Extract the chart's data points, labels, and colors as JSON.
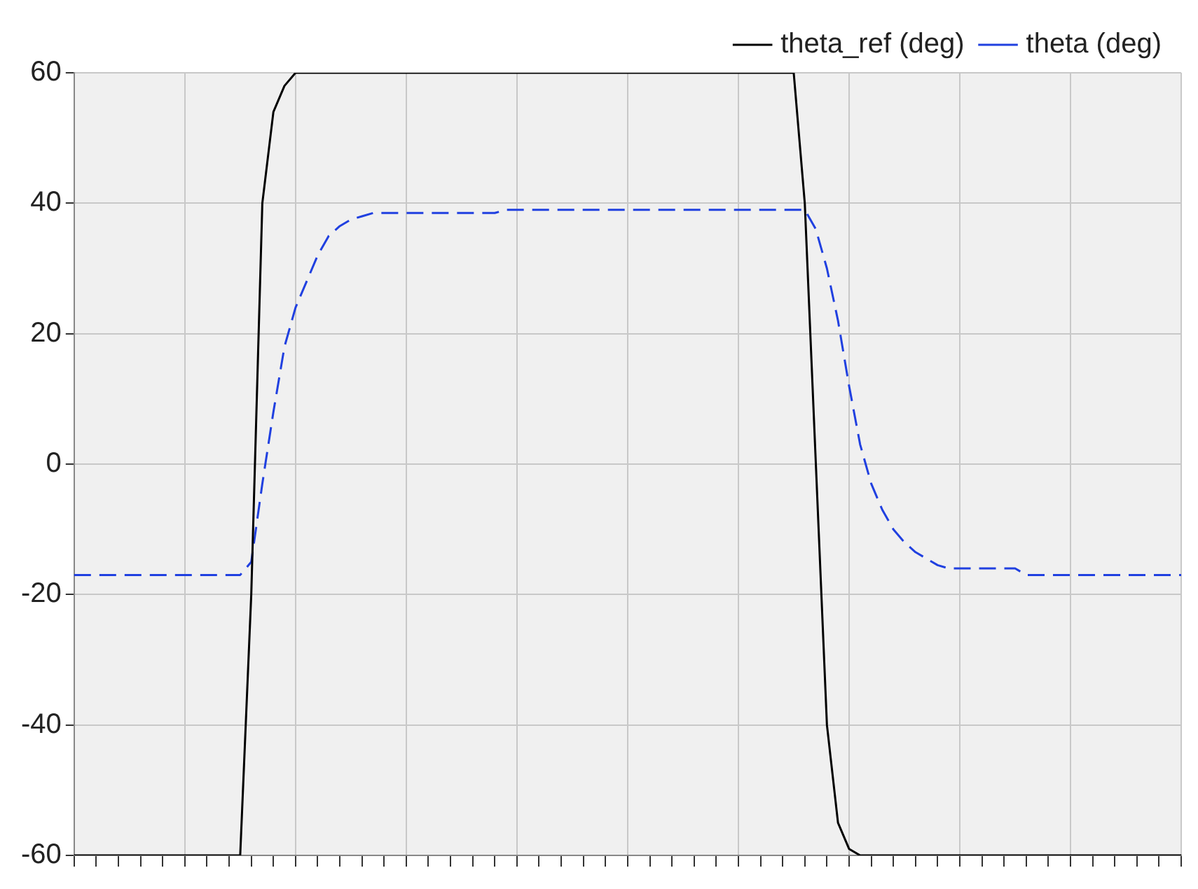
{
  "chart_data": {
    "type": "line",
    "categories": [
      null,
      null,
      null,
      null,
      null,
      null,
      null,
      null,
      null,
      null,
      null,
      null,
      null,
      null,
      null,
      null,
      null,
      null,
      null,
      null,
      null,
      null,
      null,
      null,
      null,
      null,
      null,
      null,
      null,
      null,
      null,
      null,
      null,
      null,
      null,
      null,
      null,
      null,
      null,
      null,
      null,
      null,
      null,
      null,
      null,
      null,
      null,
      null,
      null,
      null,
      null,
      null,
      null,
      null,
      null,
      null,
      null,
      null,
      null,
      null,
      null,
      null,
      null,
      null,
      null,
      null,
      null,
      null,
      null,
      null,
      null,
      null,
      null,
      null,
      null,
      null,
      null,
      null,
      null,
      null,
      null,
      null,
      null,
      null,
      null,
      null,
      null,
      null,
      null,
      null,
      null,
      null,
      null,
      null,
      null,
      null,
      null,
      null,
      null,
      null,
      null
    ],
    "series": [
      {
        "name": "theta_ref (deg)",
        "color": "#000000",
        "line_style": "solid",
        "values": [
          -60,
          -60,
          -60,
          -60,
          -60,
          -60,
          -60,
          -60,
          -60,
          -60,
          -60,
          -60,
          -60,
          -60,
          -60,
          -60,
          -20,
          40,
          54,
          58,
          60,
          60,
          60,
          60,
          60,
          60,
          60,
          60,
          60,
          60,
          60,
          60,
          60,
          60,
          60,
          60,
          60,
          60,
          60,
          60,
          60,
          60,
          60,
          60,
          60,
          60,
          60,
          60,
          60,
          60,
          60,
          60,
          60,
          60,
          60,
          60,
          60,
          60,
          60,
          60,
          60,
          60,
          60,
          60,
          60,
          60,
          40,
          0,
          -40,
          -55,
          -59,
          -60,
          -60,
          -60,
          -60,
          -60,
          -60,
          -60,
          -60,
          -60,
          -60,
          -60,
          -60,
          -60,
          -60,
          -60,
          -60,
          -60,
          -60,
          -60,
          -60,
          -60,
          -60,
          -60,
          -60,
          -60,
          -60,
          -60,
          -60,
          -60,
          -60
        ]
      },
      {
        "name": "theta (deg)",
        "color": "#2040e0",
        "line_style": "dashed",
        "values": [
          -17,
          -17,
          -17,
          -17,
          -17,
          -17,
          -17,
          -17,
          -17,
          -17,
          -17,
          -17,
          -17,
          -17,
          -17,
          -17,
          -15,
          -3,
          8,
          18,
          24,
          28,
          32,
          35,
          36.5,
          37.5,
          38,
          38.5,
          38.5,
          38.5,
          38.5,
          38.5,
          38.5,
          38.5,
          38.5,
          38.5,
          38.5,
          38.5,
          38.5,
          39,
          39,
          39,
          39,
          39,
          39,
          39,
          39,
          39,
          39,
          39,
          39,
          39,
          39,
          39,
          39,
          39,
          39,
          39,
          39,
          39,
          39,
          39,
          39,
          39,
          39,
          39,
          39,
          36,
          30,
          22,
          12,
          3,
          -3,
          -7,
          -10,
          -12,
          -13.5,
          -14.5,
          -15.5,
          -16,
          -16,
          -16,
          -16,
          -16,
          -16,
          -16,
          -17,
          -17,
          -17,
          -17,
          -17,
          -17,
          -17,
          -17,
          -17,
          -17,
          -17,
          -17,
          -17,
          -17,
          -17
        ]
      }
    ],
    "ylim": [
      -60,
      60
    ],
    "yticks": [
      -60,
      -40,
      -20,
      0,
      20,
      40,
      60
    ],
    "grid": true,
    "legend": "top right",
    "marker": "none",
    "tick_labels": "y"
  }
}
